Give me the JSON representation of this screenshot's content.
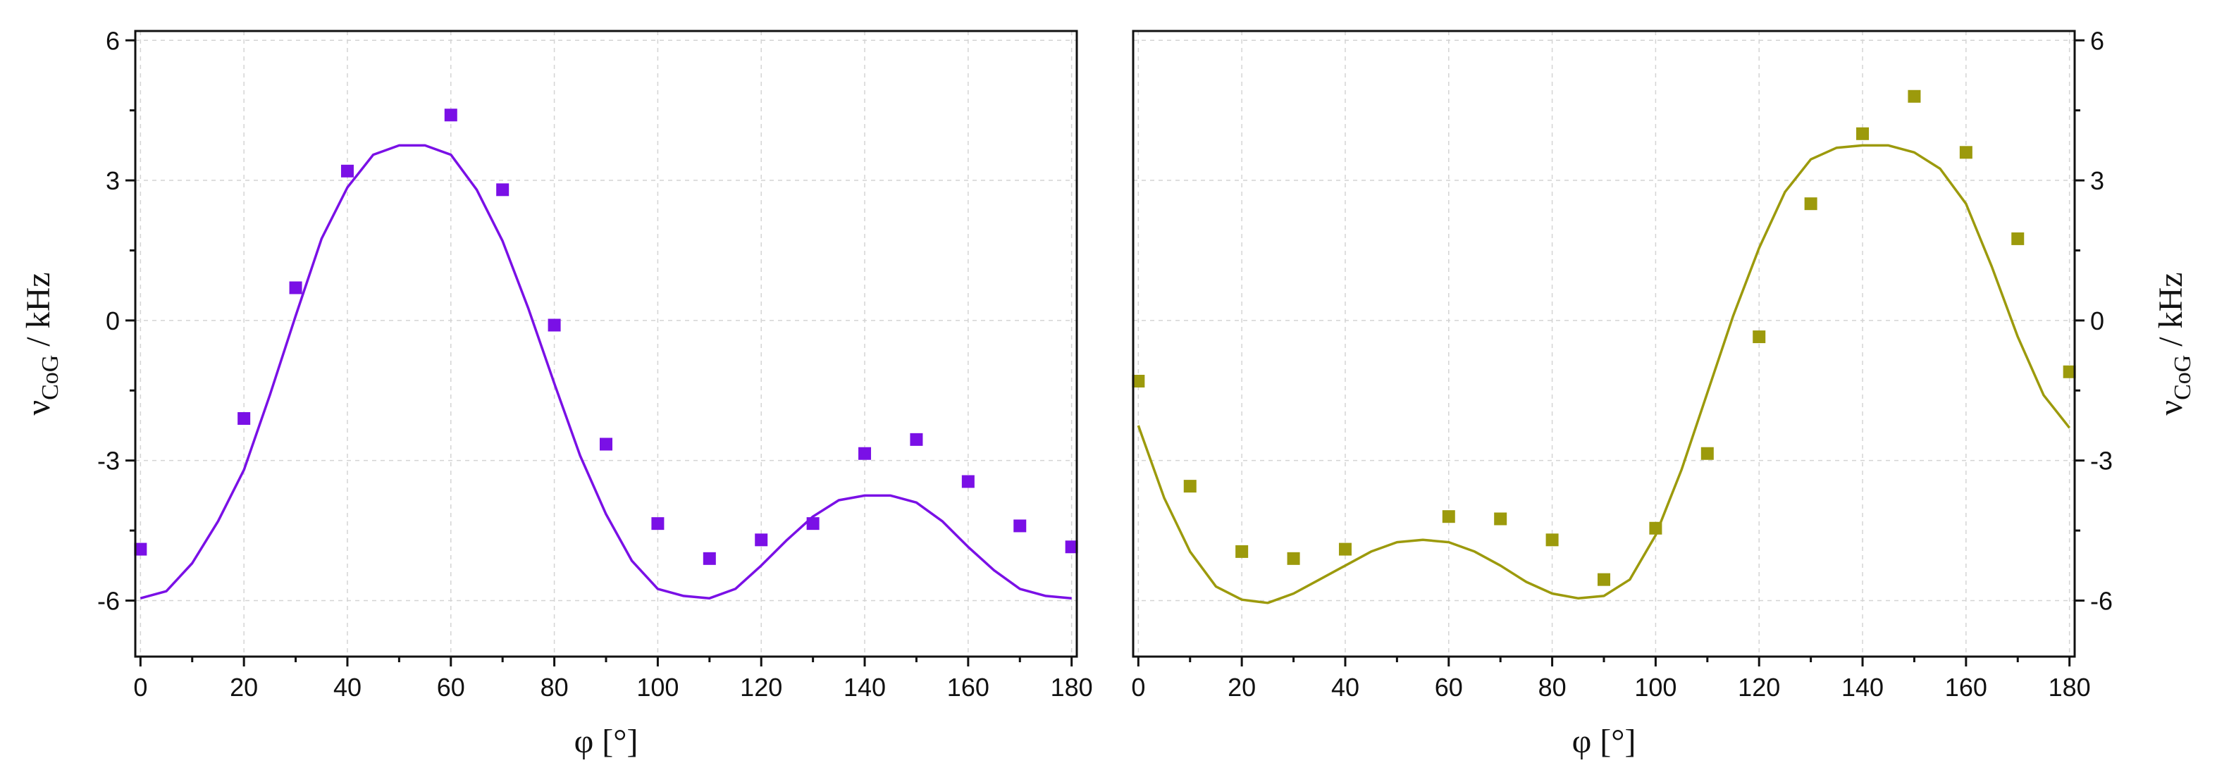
{
  "chart_data": [
    {
      "type": "scatter",
      "xlabel": "φ [°]",
      "ylabel_main": "ν",
      "ylabel_sub": "CoG",
      "ylabel_unit": " / kHz",
      "xlim": [
        -1,
        181
      ],
      "ylim": [
        -7.2,
        6.2
      ],
      "xticks": [
        0,
        20,
        40,
        60,
        80,
        100,
        120,
        140,
        160,
        180
      ],
      "yticks": [
        -6,
        -3,
        0,
        3,
        6
      ],
      "ytick_labels": [
        "-6",
        "-3",
        "0",
        "3",
        "6"
      ],
      "y_axis_side": "left",
      "grid": true,
      "color": "#7a10e6",
      "series": [
        {
          "marker": "square",
          "x": [
            0,
            20,
            30,
            40,
            60,
            70,
            80,
            90,
            100,
            110,
            120,
            130,
            140,
            150,
            160,
            170,
            180
          ],
          "y": [
            -4.9,
            -2.1,
            0.7,
            3.2,
            4.4,
            2.8,
            -0.1,
            -2.65,
            -4.35,
            -5.1,
            -4.7,
            -4.35,
            -2.85,
            -2.55,
            -3.45,
            -4.4,
            -4.85
          ]
        },
        {
          "line": "fit",
          "x": [
            0,
            5,
            10,
            15,
            20,
            25,
            30,
            35,
            40,
            45,
            50,
            55,
            60,
            65,
            70,
            75,
            80,
            85,
            90,
            95,
            100,
            105,
            110,
            115,
            120,
            125,
            130,
            135,
            140,
            145,
            150,
            155,
            160,
            165,
            170,
            175,
            180
          ],
          "y": [
            -5.95,
            -5.8,
            -5.2,
            -4.3,
            -3.2,
            -1.6,
            0.1,
            1.75,
            2.85,
            3.55,
            3.75,
            3.75,
            3.55,
            2.8,
            1.7,
            0.25,
            -1.35,
            -2.9,
            -4.15,
            -5.15,
            -5.75,
            -5.9,
            -5.95,
            -5.75,
            -5.25,
            -4.7,
            -4.2,
            -3.85,
            -3.75,
            -3.75,
            -3.9,
            -4.3,
            -4.85,
            -5.35,
            -5.75,
            -5.9,
            -5.95
          ]
        }
      ]
    },
    {
      "type": "scatter",
      "xlabel": "φ [°]",
      "ylabel_main": "ν",
      "ylabel_sub": "CoG",
      "ylabel_unit": " / kHz",
      "xlim": [
        -1,
        181
      ],
      "ylim": [
        -7.2,
        6.2
      ],
      "xticks": [
        0,
        20,
        40,
        60,
        80,
        100,
        120,
        140,
        160,
        180
      ],
      "yticks": [
        -6,
        -3,
        0,
        3,
        6
      ],
      "ytick_labels": [
        "-6",
        "-3",
        "0",
        "3",
        "6"
      ],
      "y_axis_side": "right",
      "grid": true,
      "color": "#9c9a0c",
      "series": [
        {
          "marker": "square",
          "x": [
            0,
            10,
            20,
            30,
            40,
            60,
            70,
            80,
            90,
            100,
            110,
            120,
            130,
            140,
            150,
            160,
            170,
            180
          ],
          "y": [
            -1.3,
            -3.55,
            -4.95,
            -5.1,
            -4.9,
            -4.2,
            -4.25,
            -4.7,
            -5.55,
            -4.45,
            -2.85,
            -0.35,
            2.5,
            4.0,
            4.8,
            3.6,
            1.75,
            -1.1
          ]
        },
        {
          "line": "fit",
          "x": [
            0,
            5,
            10,
            15,
            20,
            25,
            30,
            35,
            40,
            45,
            50,
            55,
            60,
            65,
            70,
            75,
            80,
            85,
            90,
            95,
            100,
            105,
            110,
            115,
            120,
            125,
            130,
            135,
            140,
            145,
            150,
            155,
            160,
            165,
            170,
            175,
            180
          ],
          "y": [
            -2.25,
            -3.8,
            -4.95,
            -5.7,
            -5.98,
            -6.05,
            -5.85,
            -5.55,
            -5.25,
            -4.95,
            -4.75,
            -4.7,
            -4.75,
            -4.95,
            -5.25,
            -5.6,
            -5.85,
            -5.95,
            -5.9,
            -5.55,
            -4.6,
            -3.2,
            -1.55,
            0.1,
            1.55,
            2.75,
            3.45,
            3.7,
            3.75,
            3.75,
            3.6,
            3.25,
            2.5,
            1.15,
            -0.35,
            -1.6,
            -2.3
          ]
        }
      ]
    }
  ]
}
